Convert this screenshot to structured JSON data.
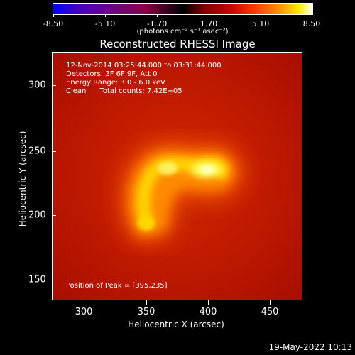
{
  "colorbar": {
    "ticks": [
      "-8.50",
      "-5.10",
      "-1.70",
      "1.70",
      "5.10",
      "8.50"
    ],
    "units": "(photons cm⁻² s⁻¹ asec⁻²)"
  },
  "title": "Reconstructed RHESSI Image",
  "info": {
    "line1": "12-Nov-2014 03:25:44.000 to 03:31:44.000",
    "line2": "Detectors: 3F 6F 9F, Att 0",
    "line3": "Energy Range: 3.0 - 6.0 keV",
    "line4": "Clean      Total counts: 7.42E+05",
    "peak": "Position of Peak = [395,235]"
  },
  "x_axis": {
    "label": "Heliocentric X (arcsec)",
    "ticks": [
      "300",
      "350",
      "400",
      "450"
    ]
  },
  "y_axis": {
    "label": "Heliocentric Y (arcsec)",
    "ticks": [
      "300",
      "250",
      "200",
      "150"
    ]
  },
  "timestamp": "19-May-2022 10:13",
  "colors": {
    "background": "#000000",
    "image_base": "#c21c00",
    "peak": "#ffff80"
  }
}
